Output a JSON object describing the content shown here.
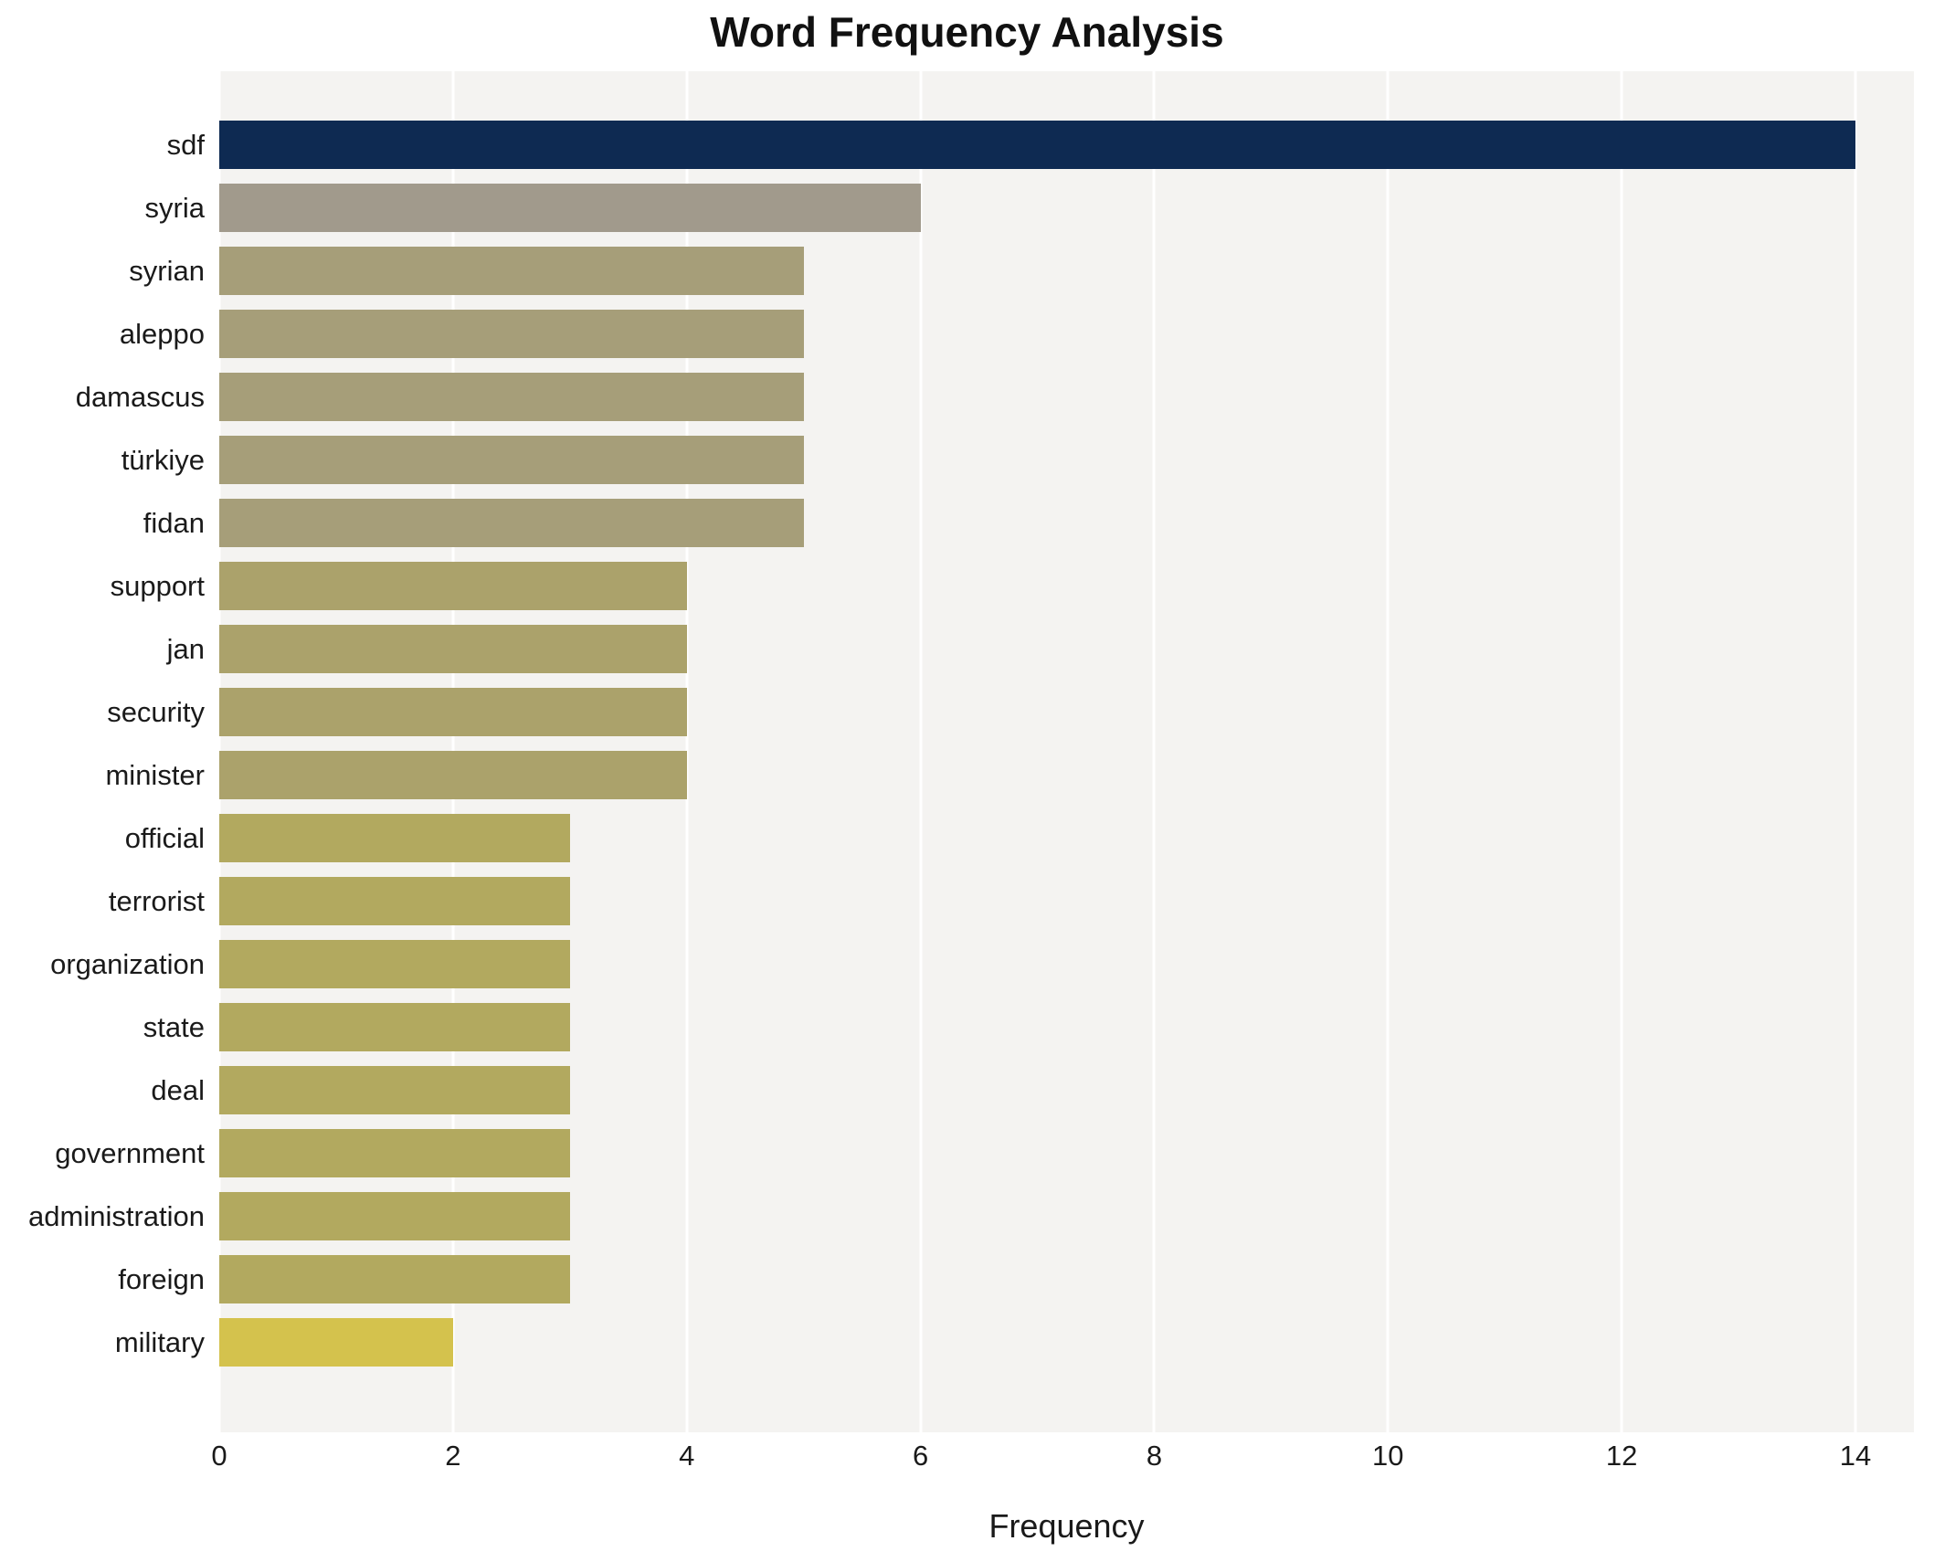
{
  "chart_data": {
    "type": "bar",
    "orientation": "horizontal",
    "title": "Word Frequency Analysis",
    "xlabel": "Frequency",
    "ylabel": "",
    "categories": [
      "sdf",
      "syria",
      "syrian",
      "aleppo",
      "damascus",
      "türkiye",
      "fidan",
      "support",
      "jan",
      "security",
      "minister",
      "official",
      "terrorist",
      "organization",
      "state",
      "deal",
      "government",
      "administration",
      "foreign",
      "military"
    ],
    "values": [
      14,
      6,
      5,
      5,
      5,
      5,
      5,
      4,
      4,
      4,
      4,
      3,
      3,
      3,
      3,
      3,
      3,
      3,
      3,
      2
    ],
    "bar_colors": [
      "#0e2a52",
      "#a19a8c",
      "#a69e79",
      "#a69e79",
      "#a69e79",
      "#a69e79",
      "#a69e79",
      "#aba26b",
      "#aba26b",
      "#aba26b",
      "#aba26b",
      "#b2a95f",
      "#b2a95f",
      "#b2a95f",
      "#b2a95f",
      "#b2a95f",
      "#b2a95f",
      "#b2a95f",
      "#b2a95f",
      "#d4c24d"
    ],
    "xlim": [
      0,
      14.5
    ],
    "xticks": [
      0,
      2,
      4,
      6,
      8,
      10,
      12,
      14
    ],
    "grid": "vertical white gridlines",
    "legend": "none",
    "plot_bg": "#f4f3f1",
    "fig_bg": "#ffffff"
  }
}
